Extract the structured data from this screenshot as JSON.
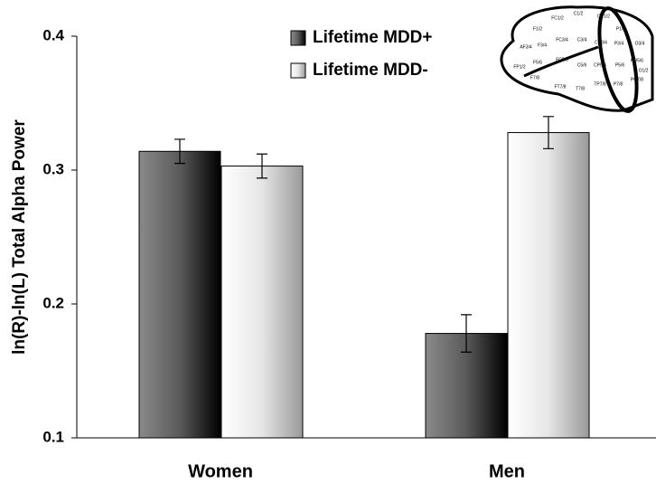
{
  "chart_data": {
    "type": "bar",
    "y_label": "ln(R)-ln(L) Total Alpha Power",
    "categories": [
      "Women",
      "Men"
    ],
    "series": [
      {
        "name": "Lifetime MDD+",
        "color": "#555555",
        "values": [
          0.314,
          0.178
        ],
        "errors": [
          0.009,
          0.014
        ]
      },
      {
        "name": "Lifetime MDD-",
        "color": "#e0e0e0",
        "values": [
          0.303,
          0.328
        ],
        "errors": [
          0.009,
          0.012
        ]
      }
    ],
    "ylim": [
      0.1,
      0.4
    ],
    "yticks": [
      0.1,
      0.2,
      0.3,
      0.4
    ],
    "electrode_labels": [
      "FC1/2",
      "C1/2",
      "CP1/2",
      "F1/2",
      "P1/2",
      "AF3/4",
      "F3/4",
      "FC3/4",
      "C3/4",
      "CP3/4",
      "P3/4",
      "O3/4",
      "FP1/2",
      "F5/6",
      "FC5/6",
      "C5/6",
      "CP5/6",
      "P5/6",
      "PO5/6",
      "O1/2",
      "F7/8",
      "FT7/8",
      "T7/8",
      "TP7/8",
      "P7/8",
      "PO7/8"
    ]
  }
}
